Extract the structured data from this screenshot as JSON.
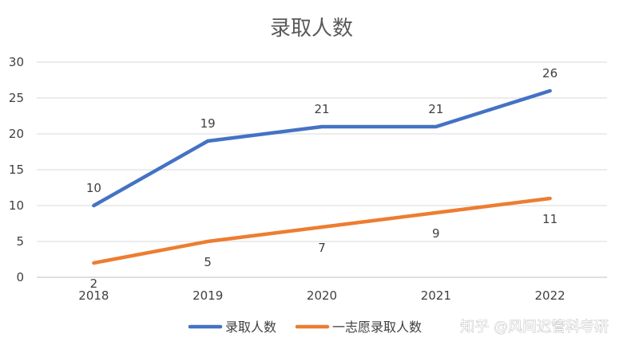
{
  "chart_data": {
    "type": "line",
    "title": "录取人数",
    "xlabel": "",
    "ylabel": "",
    "categories": [
      "2018",
      "2019",
      "2020",
      "2021",
      "2022"
    ],
    "ylim": [
      0,
      30
    ],
    "yticks": [
      0,
      5,
      10,
      15,
      20,
      25,
      30
    ],
    "grid": true,
    "legend_position": "bottom",
    "series": [
      {
        "name": "录取人数",
        "color": "#4472C4",
        "values": [
          10,
          19,
          21,
          21,
          26
        ]
      },
      {
        "name": "一志愿录取人数",
        "color": "#ED7D31",
        "values": [
          2,
          5,
          7,
          9,
          11
        ]
      }
    ]
  },
  "watermark": "知乎 @风间迟管科考研"
}
